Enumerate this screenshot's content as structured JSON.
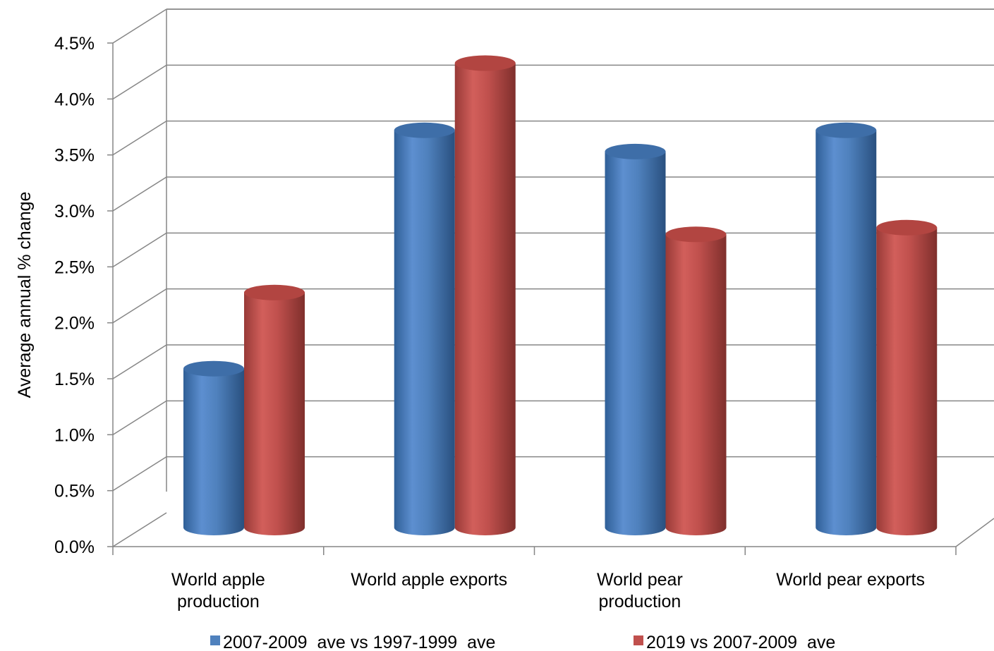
{
  "chart_data": {
    "type": "bar",
    "title": "",
    "xlabel": "",
    "ylabel": "Average annual % change",
    "ylim": [
      0,
      4.5
    ],
    "y_ticks": [
      "0.0%",
      "0.5%",
      "1.0%",
      "1.5%",
      "2.0%",
      "2.5%",
      "3.0%",
      "3.5%",
      "4.0%",
      "4.5%"
    ],
    "categories": [
      [
        "World apple",
        "production"
      ],
      [
        "World apple exports"
      ],
      [
        "World pear",
        "production"
      ],
      [
        "World pear exports"
      ]
    ],
    "series": [
      {
        "name": "2007-2009  ave vs 1997-1999  ave",
        "color": "#4F81BD",
        "values": [
          1.42,
          3.55,
          3.36,
          3.55
        ]
      },
      {
        "name": "2019 vs 2007-2009  ave",
        "color": "#C0504D",
        "values": [
          2.1,
          4.15,
          2.62,
          2.68
        ]
      }
    ],
    "grid": true,
    "legend_position": "bottom",
    "style": "3d-cylinder"
  }
}
